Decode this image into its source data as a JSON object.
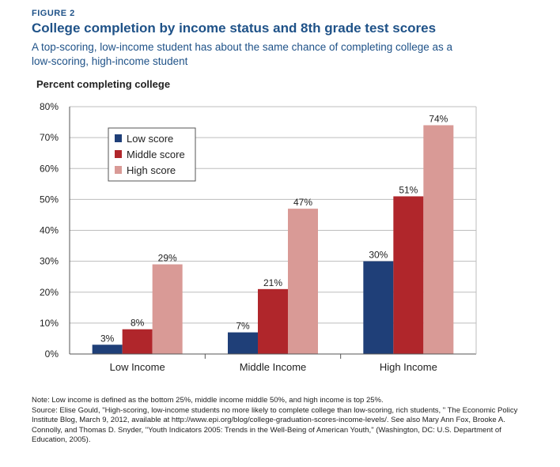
{
  "header": {
    "figure_label": "FIGURE 2",
    "title": "College completion by income status and 8th grade test scores",
    "subtitle": "A top-scoring, low-income student has about the same chance of completing college as a low-scoring, high-income student"
  },
  "chart_data": {
    "type": "bar",
    "ylabel": "Percent completing college",
    "categories": [
      "Low Income",
      "Middle Income",
      "High Income"
    ],
    "series": [
      {
        "name": "Low score",
        "values": [
          3,
          7,
          30
        ],
        "labels": [
          "3%",
          "7%",
          "30%"
        ],
        "color": "#1f3f78"
      },
      {
        "name": "Middle score",
        "values": [
          8,
          21,
          51
        ],
        "labels": [
          "8%",
          "21%",
          "51%"
        ],
        "color": "#b0262b"
      },
      {
        "name": "High score",
        "values": [
          29,
          47,
          74
        ],
        "labels": [
          "29%",
          "47%",
          "74%"
        ],
        "color": "#d99a96"
      }
    ],
    "ylim": [
      0,
      80
    ],
    "yticks": [
      0,
      10,
      20,
      30,
      40,
      50,
      60,
      70,
      80
    ],
    "ytick_labels": [
      "0%",
      "10%",
      "20%",
      "30%",
      "40%",
      "50%",
      "60%",
      "70%",
      "80%"
    ],
    "grid": true,
    "legend": "top-left"
  },
  "notes": {
    "line1": "Note: Low income is defined as the bottom 25%, middle income middle 50%, and high income is top 25%.",
    "line2": "Source: Elise Gould, \"High-scoring, low-income students no more likely to complete college than low-scoring, rich students, \" The Economic Policy Institute Blog, March 9, 2012, available at http://www.epi.org/blog/college-graduation-scores-income-levels/. See also Mary Ann Fox, Brooke A. Connolly, and Thomas D. Snyder, \"Youth Indicators 2005: Trends in the Well-Being of American Youth,\" (Washington, DC: U.S. Department of Education, 2005)."
  }
}
